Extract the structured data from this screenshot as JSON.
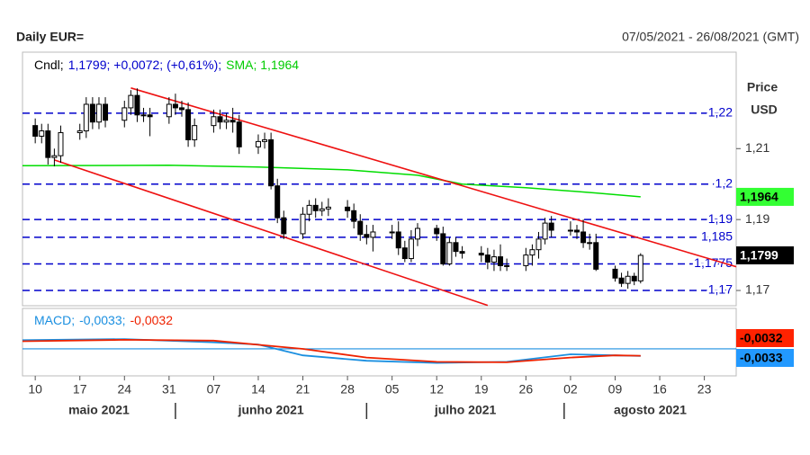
{
  "chart_data": {
    "type": "candlestick",
    "title": "Daily EUR=",
    "subtitle": "07/05/2021 - 26/08/2021 (GMT)",
    "y_label": "Price",
    "y_unit": "USD",
    "legend": [
      {
        "text": "Cndl;",
        "color": "#000000"
      },
      {
        "text": "1,1799; +0,0072; (+0,61%);",
        "color": "#0000cc"
      },
      {
        "text": "SMA; 1,1964",
        "color": "#00cc00"
      }
    ],
    "x": [
      "2021-05-10",
      "2021-05-11",
      "2021-05-12",
      "2021-05-13",
      "2021-05-14",
      "2021-05-17",
      "2021-05-18",
      "2021-05-19",
      "2021-05-20",
      "2021-05-21",
      "2021-05-24",
      "2021-05-25",
      "2021-05-26",
      "2021-05-27",
      "2021-05-28",
      "2021-05-31",
      "2021-06-01",
      "2021-06-02",
      "2021-06-03",
      "2021-06-04",
      "2021-06-07",
      "2021-06-08",
      "2021-06-09",
      "2021-06-10",
      "2021-06-11",
      "2021-06-14",
      "2021-06-15",
      "2021-06-16",
      "2021-06-17",
      "2021-06-18",
      "2021-06-21",
      "2021-06-22",
      "2021-06-23",
      "2021-06-24",
      "2021-06-25",
      "2021-06-28",
      "2021-06-29",
      "2021-06-30",
      "2021-07-01",
      "2021-07-02",
      "2021-07-05",
      "2021-07-06",
      "2021-07-07",
      "2021-07-08",
      "2021-07-09",
      "2021-07-12",
      "2021-07-13",
      "2021-07-14",
      "2021-07-15",
      "2021-07-16",
      "2021-07-19",
      "2021-07-20",
      "2021-07-21",
      "2021-07-22",
      "2021-07-23",
      "2021-07-26",
      "2021-07-27",
      "2021-07-28",
      "2021-07-29",
      "2021-07-30",
      "2021-08-02",
      "2021-08-03",
      "2021-08-04",
      "2021-08-05",
      "2021-08-06",
      "2021-08-09",
      "2021-08-10",
      "2021-08-11",
      "2021-08-12",
      "2021-08-13"
    ],
    "open": [
      1.2165,
      1.2135,
      1.215,
      1.2075,
      1.208,
      1.2145,
      1.215,
      1.2225,
      1.2175,
      1.2225,
      1.218,
      1.2215,
      1.225,
      1.2195,
      1.2195,
      1.219,
      1.2225,
      1.2215,
      1.221,
      1.2125,
      1.2165,
      1.219,
      1.2175,
      1.218,
      1.2175,
      1.2105,
      1.212,
      1.2125,
      1.1995,
      1.1905,
      1.186,
      1.1915,
      1.194,
      1.1925,
      1.193,
      1.1935,
      1.1925,
      1.1895,
      1.1858,
      1.185,
      1.1865,
      1.1865,
      1.182,
      1.179,
      1.1845,
      1.1875,
      1.186,
      1.1775,
      1.1835,
      1.181,
      1.1805,
      1.18,
      1.178,
      1.1795,
      1.177,
      1.177,
      1.18,
      1.1815,
      1.1845,
      1.189,
      1.187,
      1.187,
      1.1865,
      1.1835,
      1.1835,
      1.176,
      1.1735,
      1.172,
      1.174,
      1.1727
    ],
    "high": [
      1.2185,
      1.217,
      1.217,
      1.21,
      1.2165,
      1.217,
      1.2245,
      1.2245,
      1.2245,
      1.2245,
      1.2235,
      1.2265,
      1.227,
      1.2215,
      1.2215,
      1.2245,
      1.2255,
      1.2235,
      1.223,
      1.2185,
      1.221,
      1.221,
      1.22,
      1.2215,
      1.2195,
      1.214,
      1.2145,
      1.2145,
      1.2015,
      1.1925,
      1.1935,
      1.1955,
      1.196,
      1.195,
      1.196,
      1.1955,
      1.1945,
      1.1915,
      1.1885,
      1.1885,
      1.1885,
      1.1895,
      1.184,
      1.187,
      1.189,
      1.1885,
      1.188,
      1.185,
      1.185,
      1.1825,
      1.1825,
      1.182,
      1.1815,
      1.183,
      1.179,
      1.182,
      1.183,
      1.1865,
      1.1905,
      1.191,
      1.1895,
      1.1885,
      1.19,
      1.186,
      1.186,
      1.177,
      1.175,
      1.1755,
      1.175,
      1.1805
    ],
    "low": [
      1.2115,
      1.2115,
      1.2055,
      1.205,
      1.206,
      1.2125,
      1.213,
      1.2155,
      1.2155,
      1.216,
      1.216,
      1.2195,
      1.2175,
      1.2175,
      1.2135,
      1.217,
      1.2195,
      1.219,
      1.2105,
      1.2105,
      1.2145,
      1.2155,
      1.2155,
      1.2145,
      1.2085,
      1.2085,
      1.21,
      1.1985,
      1.189,
      1.1845,
      1.1845,
      1.1895,
      1.1905,
      1.191,
      1.191,
      1.1905,
      1.1875,
      1.184,
      1.183,
      1.181,
      1.1845,
      1.18,
      1.178,
      1.178,
      1.1825,
      1.184,
      1.177,
      1.177,
      1.1795,
      1.179,
      1.178,
      1.176,
      1.1755,
      1.1755,
      1.1755,
      1.1755,
      1.177,
      1.179,
      1.183,
      1.185,
      1.1855,
      1.1845,
      1.182,
      1.1815,
      1.1755,
      1.1725,
      1.171,
      1.1705,
      1.1715,
      1.172
    ],
    "close": [
      1.2135,
      1.215,
      1.2075,
      1.208,
      1.2145,
      1.215,
      1.2225,
      1.2175,
      1.2225,
      1.218,
      1.2215,
      1.225,
      1.2195,
      1.2195,
      1.219,
      1.2225,
      1.2215,
      1.221,
      1.2125,
      1.2165,
      1.219,
      1.2175,
      1.218,
      1.2175,
      1.2105,
      1.212,
      1.2125,
      1.1995,
      1.1905,
      1.186,
      1.1915,
      1.194,
      1.1925,
      1.193,
      1.1935,
      1.1925,
      1.1895,
      1.1858,
      1.185,
      1.1865,
      1.1865,
      1.182,
      1.179,
      1.1845,
      1.1875,
      1.186,
      1.1775,
      1.1835,
      1.181,
      1.1805,
      1.18,
      1.178,
      1.1795,
      1.177,
      1.177,
      1.18,
      1.1815,
      1.1845,
      1.189,
      1.187,
      1.187,
      1.1865,
      1.1835,
      1.1835,
      1.176,
      1.1735,
      1.172,
      1.174,
      1.1727,
      1.1799
    ],
    "close_label": "1,1799",
    "sma": {
      "name": "SMA",
      "color": "#00dd00",
      "label_color": "#33ff33",
      "value_label": "1,1964",
      "x": [
        "2021-05-08",
        "2021-05-31",
        "2021-06-14",
        "2021-06-28",
        "2021-07-09",
        "2021-07-16",
        "2021-07-26",
        "2021-08-06",
        "2021-08-13"
      ],
      "values": [
        1.2052,
        1.2053,
        1.2048,
        1.204,
        1.2025,
        1.2,
        1.199,
        1.1975,
        1.1964
      ]
    },
    "levels": [
      {
        "value": 1.22,
        "label": "1,22"
      },
      {
        "value": 1.2,
        "label": "1,2"
      },
      {
        "value": 1.19,
        "label": "1,19"
      },
      {
        "value": 1.185,
        "label": "1,185"
      },
      {
        "value": 1.1775,
        "label": "1,1775"
      },
      {
        "value": 1.17,
        "label": "1,17"
      }
    ],
    "level_color": "#0000cc",
    "trendlines": {
      "color": "#ee1111",
      "lines": [
        {
          "x": [
            "2021-05-25",
            "2021-08-28"
          ],
          "values": [
            1.2271,
            1.1767
          ]
        },
        {
          "x": [
            "2021-05-13",
            "2021-07-20"
          ],
          "values": [
            1.2068,
            1.1658
          ]
        }
      ]
    },
    "xlim": [
      "2021-05-08",
      "2021-08-28"
    ],
    "ylim": [
      1.1657,
      1.2372
    ],
    "yticks": [
      {
        "value": 1.17,
        "label": "1,17"
      },
      {
        "value": 1.19,
        "label": "1,19"
      },
      {
        "value": 1.21,
        "label": "1,21"
      }
    ],
    "xticks": [
      {
        "value": "2021-05-10",
        "label": "10"
      },
      {
        "value": "2021-05-17",
        "label": "17"
      },
      {
        "value": "2021-05-24",
        "label": "24"
      },
      {
        "value": "2021-05-31",
        "label": "31"
      },
      {
        "value": "2021-06-07",
        "label": "07"
      },
      {
        "value": "2021-06-14",
        "label": "14"
      },
      {
        "value": "2021-06-21",
        "label": "21"
      },
      {
        "value": "2021-06-28",
        "label": "28"
      },
      {
        "value": "2021-07-05",
        "label": "05"
      },
      {
        "value": "2021-07-12",
        "label": "12"
      },
      {
        "value": "2021-07-19",
        "label": "19"
      },
      {
        "value": "2021-07-26",
        "label": "26"
      },
      {
        "value": "2021-08-02",
        "label": "02"
      },
      {
        "value": "2021-08-09",
        "label": "09"
      },
      {
        "value": "2021-08-16",
        "label": "16"
      },
      {
        "value": "2021-08-23",
        "label": "23"
      }
    ],
    "months": [
      {
        "start": "2021-05-08",
        "end": "2021-06-01",
        "label": "maio 2021"
      },
      {
        "start": "2021-06-01",
        "end": "2021-07-01",
        "label": "junho 2021"
      },
      {
        "start": "2021-07-01",
        "end": "2021-08-01",
        "label": "julho 2021"
      },
      {
        "start": "2021-08-01",
        "end": "2021-08-28",
        "label": "agosto 2021"
      }
    ],
    "macd": {
      "legend": [
        {
          "text": "MACD;",
          "color": "#1a8fe0"
        },
        {
          "text": "-0,0033;",
          "color": "#1a8fe0"
        },
        {
          "text": "-0,0032",
          "color": "#ee2200"
        }
      ],
      "ylim": [
        -0.0125,
        0.0187
      ],
      "yticks": [
        0
      ],
      "series": [
        {
          "name": "MACD",
          "color": "#1a8fe0",
          "box_color": "#2299ff",
          "value_label": "-0,0033",
          "x": [
            "2021-05-08",
            "2021-05-24",
            "2021-06-07",
            "2021-06-14",
            "2021-06-21",
            "2021-07-01",
            "2021-07-12",
            "2021-07-23",
            "2021-08-02",
            "2021-08-09",
            "2021-08-13"
          ],
          "values": [
            0.004,
            0.0045,
            0.003,
            0.002,
            -0.003,
            -0.0055,
            -0.0065,
            -0.006,
            -0.0025,
            -0.003,
            -0.0033
          ]
        },
        {
          "name": "Signal",
          "color": "#ee2200",
          "box_color": "#ff2200",
          "value_label": "-0,0032",
          "x": [
            "2021-05-08",
            "2021-05-24",
            "2021-06-07",
            "2021-06-21",
            "2021-07-01",
            "2021-07-12",
            "2021-07-23",
            "2021-08-02",
            "2021-08-09",
            "2021-08-13"
          ],
          "values": [
            0.0035,
            0.0042,
            0.0038,
            0.0,
            -0.004,
            -0.006,
            -0.0062,
            -0.004,
            -0.003,
            -0.0032
          ]
        }
      ]
    }
  }
}
